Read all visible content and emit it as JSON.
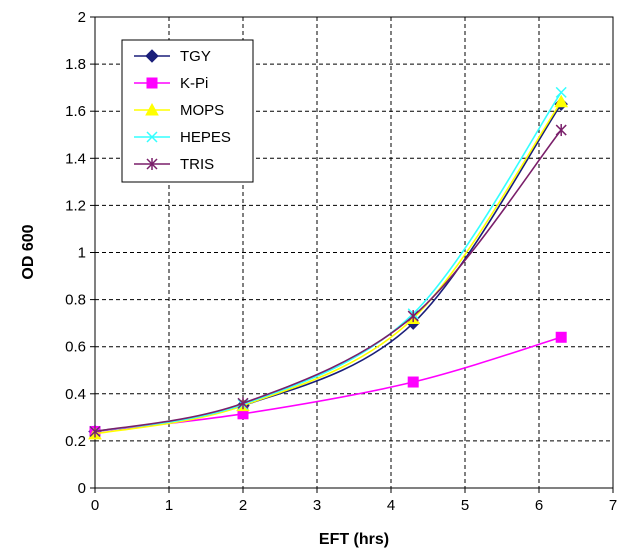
{
  "chart_data": {
    "type": "line",
    "title": "",
    "xlabel": "EFT (hrs)",
    "ylabel": "OD 600",
    "xlim": [
      0,
      7
    ],
    "ylim": [
      0,
      2
    ],
    "xticks": [
      0,
      1,
      2,
      3,
      4,
      5,
      6,
      7
    ],
    "yticks": [
      0,
      0.2,
      0.4,
      0.6,
      0.8,
      1,
      1.2,
      1.4,
      1.6,
      1.8,
      2
    ],
    "ytick_labels": [
      "0",
      "0.2",
      "0.4",
      "0.6",
      "0.8",
      "1",
      "1.2",
      "1.4",
      "1.6",
      "1.8",
      "2"
    ],
    "grid": true,
    "legend_position": "top-left",
    "series": [
      {
        "name": "TGY",
        "color": "#1a1f7a",
        "marker": "diamond",
        "x": [
          0,
          2,
          4.3,
          6.3
        ],
        "y": [
          0.24,
          0.35,
          0.7,
          1.63
        ]
      },
      {
        "name": "K-Pi",
        "color": "#ff00ff",
        "marker": "square",
        "x": [
          0,
          2,
          4.3,
          6.3
        ],
        "y": [
          0.24,
          0.315,
          0.45,
          0.64
        ]
      },
      {
        "name": "MOPS",
        "color": "#ffff00",
        "marker": "triangle",
        "x": [
          0,
          2,
          4.3,
          6.3
        ],
        "y": [
          0.23,
          0.35,
          0.72,
          1.64
        ]
      },
      {
        "name": "HEPES",
        "color": "#33ffff",
        "marker": "x",
        "x": [
          0,
          2,
          4.3,
          6.3
        ],
        "y": [
          0.24,
          0.355,
          0.74,
          1.68
        ]
      },
      {
        "name": "TRIS",
        "color": "#7a1f6a",
        "marker": "star",
        "x": [
          0,
          2,
          4.3,
          6.3
        ],
        "y": [
          0.24,
          0.36,
          0.73,
          1.52
        ]
      }
    ]
  }
}
